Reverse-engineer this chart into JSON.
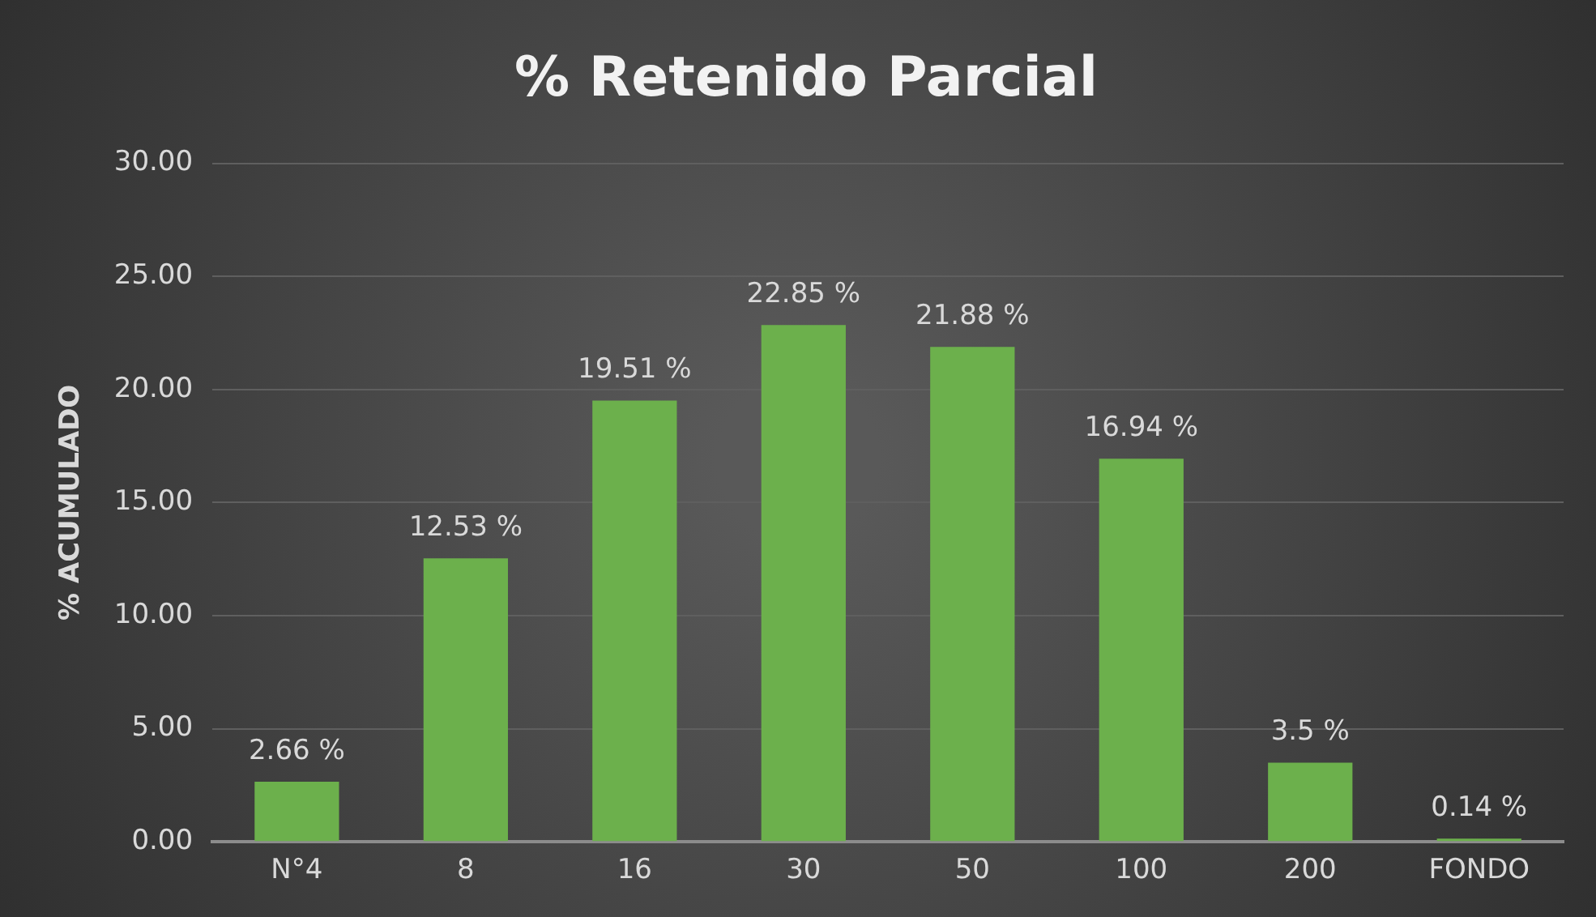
{
  "chart_data": {
    "type": "bar",
    "title": "% Retenido Parcial",
    "ylabel": "% ACUMULADO",
    "categories": [
      "N°4",
      "8",
      "16",
      "30",
      "50",
      "100",
      "200",
      "FONDO"
    ],
    "values": [
      2.66,
      12.53,
      19.51,
      22.85,
      21.88,
      16.94,
      3.5,
      0.14
    ],
    "value_labels": [
      "2.66 %",
      "12.53 %",
      "19.51 %",
      "22.85 %",
      "21.88 %",
      "16.94 %",
      "3.5 %",
      "0.14 %"
    ],
    "color": "#6cb04c",
    "ylim": [
      0,
      30
    ],
    "yticks": [
      {
        "value": 0,
        "label": "0.00"
      },
      {
        "value": 5,
        "label": "5.00"
      },
      {
        "value": 10,
        "label": "10.00"
      },
      {
        "value": 15,
        "label": "15.00"
      },
      {
        "value": 20,
        "label": "20.00"
      },
      {
        "value": 25,
        "label": "25.00"
      },
      {
        "value": 30,
        "label": "30.00"
      }
    ],
    "grid": "y",
    "legend": false
  }
}
